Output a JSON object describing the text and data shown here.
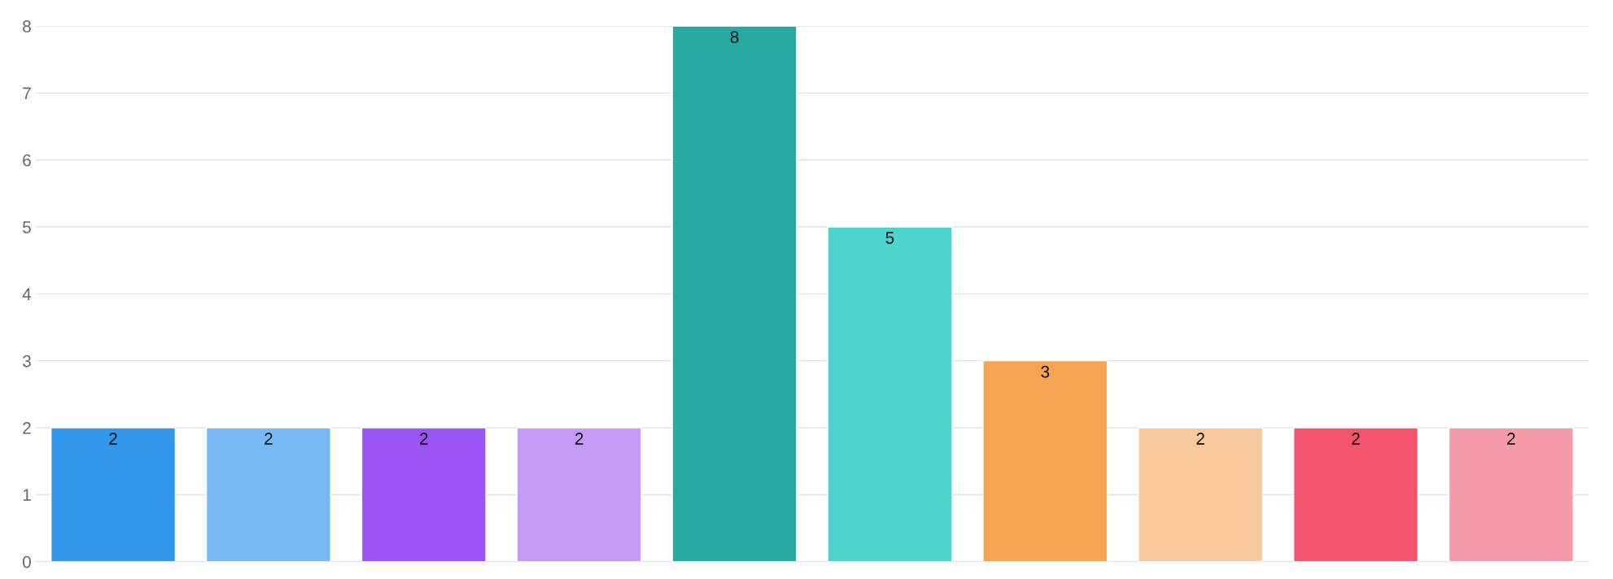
{
  "chart_data": {
    "type": "bar",
    "categories": [
      null,
      null,
      null,
      null,
      null,
      null,
      null,
      null,
      null,
      null
    ],
    "values": [
      2,
      2,
      2,
      2,
      8,
      5,
      3,
      2,
      2,
      2
    ],
    "colors": [
      "#3296ea",
      "#78b9f5",
      "#9b55f2",
      "#c59bf5",
      "#27a9a4",
      "#4ed4cf",
      "#f5a453",
      "#f8c99c",
      "#f2546e",
      "#f49aa8"
    ],
    "ylim": [
      0,
      8
    ],
    "yticks": [
      0,
      1,
      2,
      3,
      4,
      5,
      6,
      7,
      8
    ],
    "grid": "y",
    "data_labels": true
  }
}
